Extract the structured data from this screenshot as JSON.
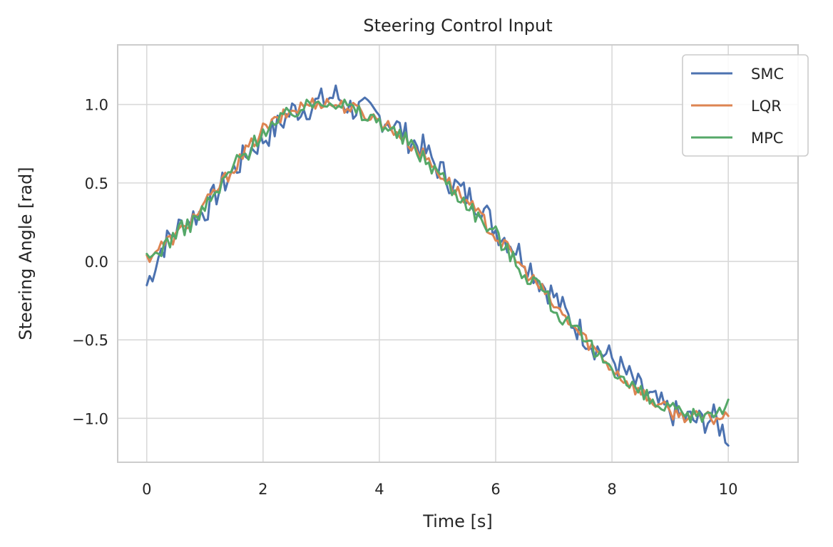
{
  "chart_data": {
    "type": "line",
    "title": "Steering Control Input",
    "xlabel": "Time [s]",
    "ylabel": "Steering Angle [rad]",
    "xlim": [
      -0.5,
      11.2
    ],
    "ylim": [
      -1.28,
      1.38
    ],
    "xticks": [
      0,
      2,
      4,
      6,
      8,
      10
    ],
    "xtick_labels": [
      "0",
      "2",
      "4",
      "6",
      "8",
      "10"
    ],
    "yticks": [
      -1.0,
      -0.5,
      0.0,
      0.5,
      1.0
    ],
    "ytick_labels": [
      "−1.0",
      "−0.5",
      "0.0",
      "0.5",
      "1.0"
    ],
    "grid": true,
    "legend": "top-right",
    "x": [
      0,
      0.25,
      0.5,
      0.75,
      1.0,
      1.25,
      1.5,
      1.75,
      2.0,
      2.25,
      2.5,
      2.75,
      3.0,
      3.25,
      3.5,
      3.75,
      4.0,
      4.25,
      4.5,
      4.75,
      5.0,
      5.25,
      5.5,
      5.75,
      6.0,
      6.25,
      6.5,
      6.75,
      7.0,
      7.25,
      7.5,
      7.75,
      8.0,
      8.25,
      8.5,
      8.75,
      9.0,
      9.25,
      9.5,
      9.75,
      10.0
    ],
    "series": [
      {
        "name": "SMC",
        "color": "#4c72b0",
        "values": [
          -0.15,
          0.08,
          0.2,
          0.28,
          0.32,
          0.46,
          0.58,
          0.7,
          0.78,
          0.86,
          0.96,
          0.98,
          1.02,
          1.06,
          0.98,
          0.96,
          0.92,
          0.88,
          0.78,
          0.72,
          0.6,
          0.5,
          0.42,
          0.36,
          0.2,
          0.12,
          0.02,
          -0.12,
          -0.22,
          -0.36,
          -0.46,
          -0.56,
          -0.62,
          -0.72,
          -0.82,
          -0.9,
          -0.96,
          -1.0,
          -1.02,
          -1.0,
          -1.12
        ]
      },
      {
        "name": "LQR",
        "color": "#dd8452",
        "values": [
          0.02,
          0.1,
          0.16,
          0.26,
          0.36,
          0.48,
          0.6,
          0.72,
          0.84,
          0.9,
          0.96,
          1.0,
          1.02,
          1.0,
          0.98,
          0.94,
          0.9,
          0.84,
          0.76,
          0.68,
          0.58,
          0.48,
          0.38,
          0.28,
          0.16,
          0.06,
          -0.06,
          -0.16,
          -0.28,
          -0.38,
          -0.48,
          -0.58,
          -0.68,
          -0.76,
          -0.84,
          -0.9,
          -0.96,
          -0.98,
          -1.0,
          -1.0,
          -0.98
        ]
      },
      {
        "name": "MPC",
        "color": "#55a868",
        "values": [
          0.0,
          0.08,
          0.18,
          0.24,
          0.34,
          0.46,
          0.62,
          0.7,
          0.84,
          0.88,
          0.96,
          0.98,
          1.04,
          1.02,
          0.98,
          0.92,
          0.9,
          0.82,
          0.76,
          0.66,
          0.58,
          0.46,
          0.38,
          0.26,
          0.18,
          0.04,
          -0.08,
          -0.14,
          -0.3,
          -0.4,
          -0.5,
          -0.6,
          -0.66,
          -0.78,
          -0.84,
          -0.92,
          -0.94,
          -1.0,
          -0.98,
          -0.96,
          -0.9
        ]
      }
    ]
  }
}
